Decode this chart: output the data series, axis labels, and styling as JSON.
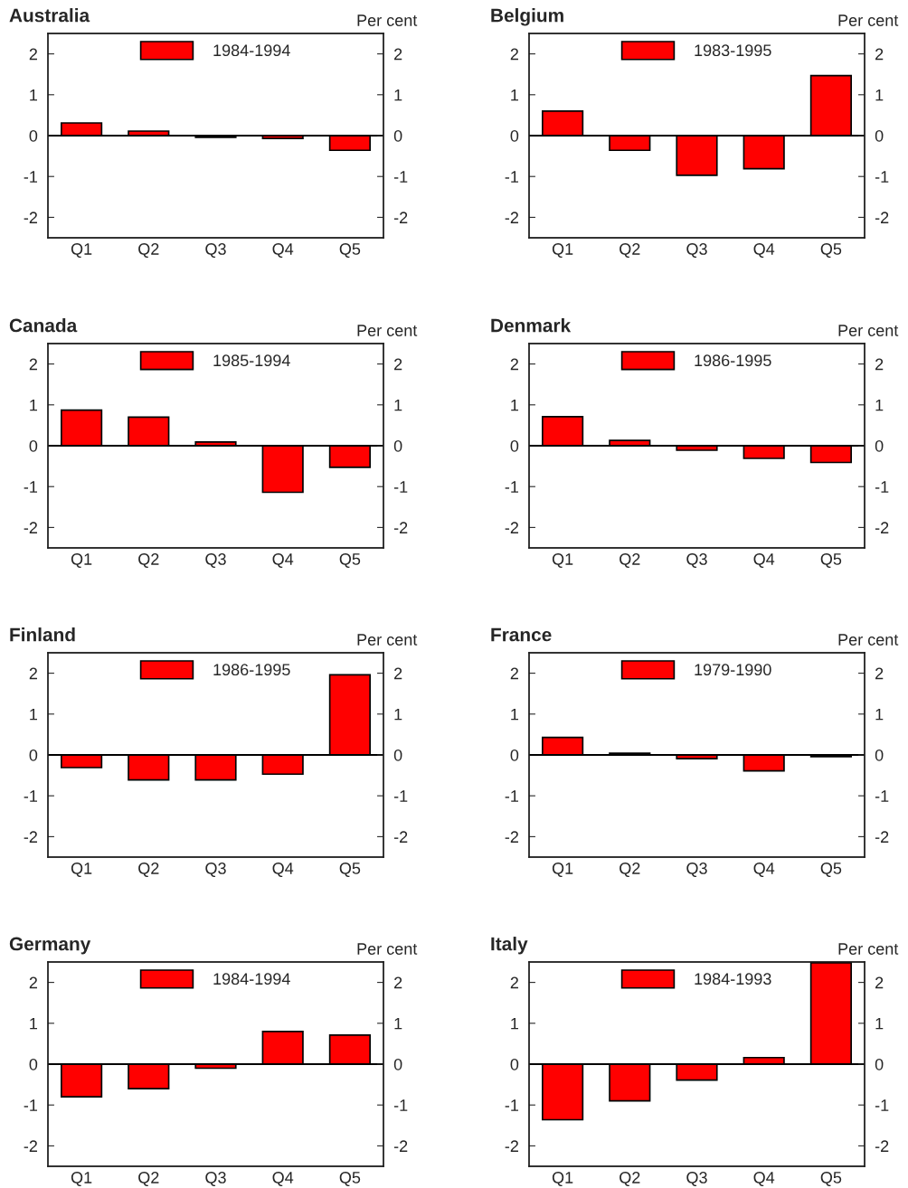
{
  "chart_data": [
    {
      "type": "bar",
      "title": "Australia",
      "y2label": "Per cent",
      "categories": [
        "Q1",
        "Q2",
        "Q3",
        "Q4",
        "Q5"
      ],
      "series": [
        {
          "name": "1984-1994",
          "color": "#ff0000",
          "values": [
            0.31,
            0.11,
            -0.04,
            -0.07,
            -0.36
          ]
        }
      ],
      "ylim": [
        -2.5,
        2.5
      ],
      "yticks": [
        -2,
        -1,
        0,
        1,
        2
      ],
      "y2lim": [
        -2.5,
        2.5
      ],
      "y2ticks": [
        -2,
        -1,
        0,
        1,
        2
      ],
      "legend": "top",
      "ref_lines": [
        {
          "axis": "y",
          "value": 0,
          "color": "#000000"
        }
      ]
    },
    {
      "type": "bar",
      "title": "Belgium",
      "y2label": "Per cent",
      "categories": [
        "Q1",
        "Q2",
        "Q3",
        "Q4",
        "Q5"
      ],
      "series": [
        {
          "name": "1983-1995",
          "color": "#ff0000",
          "values": [
            0.6,
            -0.36,
            -0.97,
            -0.81,
            1.47
          ]
        }
      ],
      "ylim": [
        -2.5,
        2.5
      ],
      "yticks": [
        -2,
        -1,
        0,
        1,
        2
      ],
      "y2lim": [
        -2.5,
        2.5
      ],
      "y2ticks": [
        -2,
        -1,
        0,
        1,
        2
      ],
      "legend": "top",
      "ref_lines": [
        {
          "axis": "y",
          "value": 0,
          "color": "#000000"
        }
      ]
    },
    {
      "type": "bar",
      "title": "Canada",
      "y2label": "Per cent",
      "categories": [
        "Q1",
        "Q2",
        "Q3",
        "Q4",
        "Q5"
      ],
      "series": [
        {
          "name": "1985-1994",
          "color": "#ff0000",
          "values": [
            0.87,
            0.7,
            0.09,
            -1.14,
            -0.53
          ]
        }
      ],
      "ylim": [
        -2.5,
        2.5
      ],
      "yticks": [
        -2,
        -1,
        0,
        1,
        2
      ],
      "y2lim": [
        -2.5,
        2.5
      ],
      "y2ticks": [
        -2,
        -1,
        0,
        1,
        2
      ],
      "legend": "top",
      "ref_lines": [
        {
          "axis": "y",
          "value": 0,
          "color": "#000000"
        }
      ]
    },
    {
      "type": "bar",
      "title": "Denmark",
      "y2label": "Per cent",
      "categories": [
        "Q1",
        "Q2",
        "Q3",
        "Q4",
        "Q5"
      ],
      "series": [
        {
          "name": "1986-1995",
          "color": "#ff0000",
          "values": [
            0.71,
            0.13,
            -0.11,
            -0.31,
            -0.41
          ]
        }
      ],
      "ylim": [
        -2.5,
        2.5
      ],
      "yticks": [
        -2,
        -1,
        0,
        1,
        2
      ],
      "y2lim": [
        -2.5,
        2.5
      ],
      "y2ticks": [
        -2,
        -1,
        0,
        1,
        2
      ],
      "legend": "top",
      "ref_lines": [
        {
          "axis": "y",
          "value": 0,
          "color": "#000000"
        }
      ]
    },
    {
      "type": "bar",
      "title": "Finland",
      "y2label": "Per cent",
      "categories": [
        "Q1",
        "Q2",
        "Q3",
        "Q4",
        "Q5"
      ],
      "series": [
        {
          "name": "1986-1995",
          "color": "#ff0000",
          "values": [
            -0.31,
            -0.61,
            -0.61,
            -0.47,
            1.96
          ]
        }
      ],
      "ylim": [
        -2.5,
        2.5
      ],
      "yticks": [
        -2,
        -1,
        0,
        1,
        2
      ],
      "y2lim": [
        -2.5,
        2.5
      ],
      "y2ticks": [
        -2,
        -1,
        0,
        1,
        2
      ],
      "legend": "top",
      "ref_lines": [
        {
          "axis": "y",
          "value": 0,
          "color": "#000000"
        }
      ]
    },
    {
      "type": "bar",
      "title": "France",
      "y2label": "Per cent",
      "categories": [
        "Q1",
        "Q2",
        "Q3",
        "Q4",
        "Q5"
      ],
      "series": [
        {
          "name": "1979-1990",
          "color": "#ff0000",
          "values": [
            0.43,
            0.04,
            -0.09,
            -0.39,
            -0.04
          ]
        }
      ],
      "ylim": [
        -2.5,
        2.5
      ],
      "yticks": [
        -2,
        -1,
        0,
        1,
        2
      ],
      "y2lim": [
        -2.5,
        2.5
      ],
      "y2ticks": [
        -2,
        -1,
        0,
        1,
        2
      ],
      "legend": "top",
      "ref_lines": [
        {
          "axis": "y",
          "value": 0,
          "color": "#000000"
        }
      ]
    },
    {
      "type": "bar",
      "title": "Germany",
      "y2label": "Per cent",
      "categories": [
        "Q1",
        "Q2",
        "Q3",
        "Q4",
        "Q5"
      ],
      "series": [
        {
          "name": "1984-1994",
          "color": "#ff0000",
          "values": [
            -0.8,
            -0.6,
            -0.1,
            0.8,
            0.71
          ]
        }
      ],
      "ylim": [
        -2.5,
        2.5
      ],
      "yticks": [
        -2,
        -1,
        0,
        1,
        2
      ],
      "y2lim": [
        -2.5,
        2.5
      ],
      "y2ticks": [
        -2,
        -1,
        0,
        1,
        2
      ],
      "legend": "top",
      "ref_lines": [
        {
          "axis": "y",
          "value": 0,
          "color": "#000000"
        }
      ]
    },
    {
      "type": "bar",
      "title": "Italy",
      "y2label": "Per cent",
      "categories": [
        "Q1",
        "Q2",
        "Q3",
        "Q4",
        "Q5"
      ],
      "series": [
        {
          "name": "1984-1993",
          "color": "#ff0000",
          "values": [
            -1.36,
            -0.9,
            -0.39,
            0.16,
            2.48
          ]
        }
      ],
      "ylim": [
        -2.5,
        2.5
      ],
      "yticks": [
        -2,
        -1,
        0,
        1,
        2
      ],
      "y2lim": [
        -2.5,
        2.5
      ],
      "y2ticks": [
        -2,
        -1,
        0,
        1,
        2
      ],
      "legend": "top",
      "ref_lines": [
        {
          "axis": "y",
          "value": 0,
          "color": "#000000"
        }
      ]
    }
  ]
}
